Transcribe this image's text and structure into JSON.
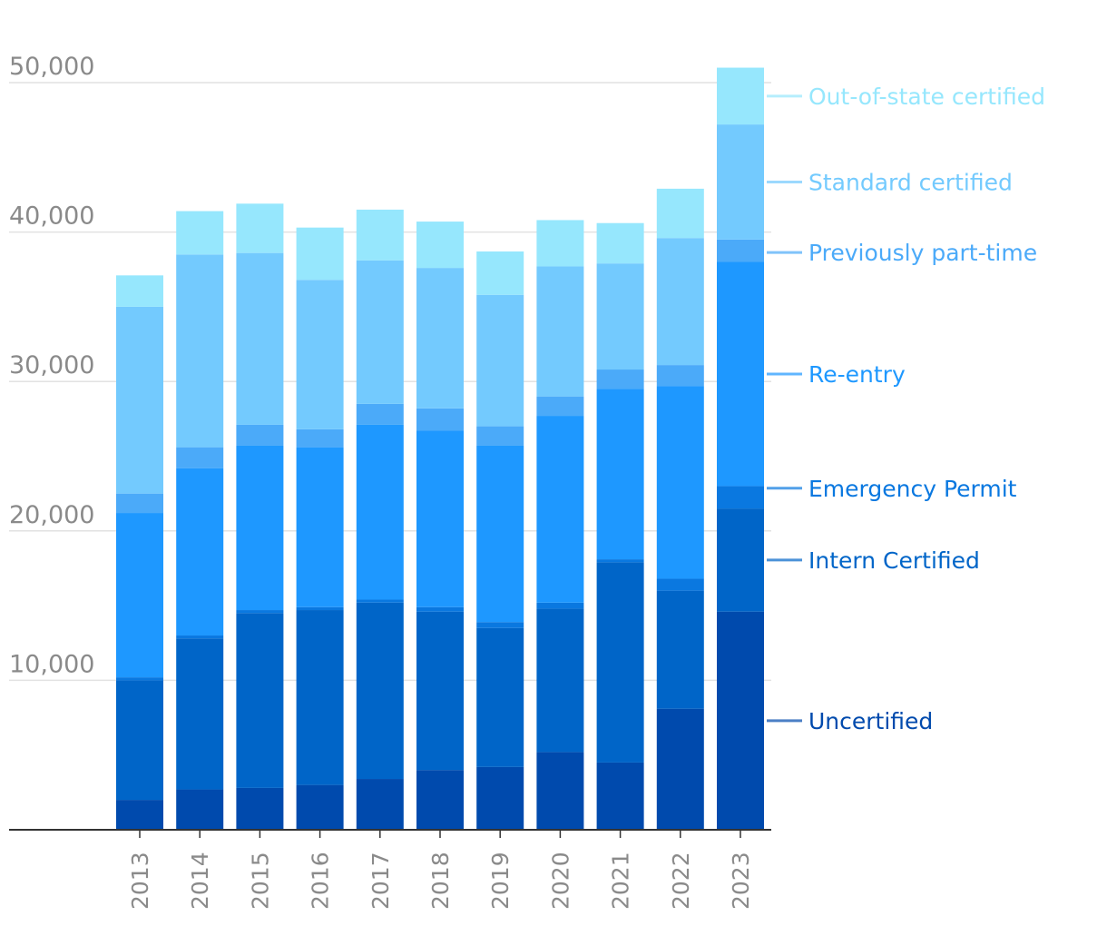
{
  "chart_data": {
    "type": "bar",
    "stacked": true,
    "title": "",
    "xlabel": "",
    "ylabel": "",
    "ylim": [
      0,
      50000
    ],
    "yticks": [
      10000,
      20000,
      30000,
      40000,
      50000
    ],
    "ytick_labels": [
      "10,000",
      "20,000",
      "30,000",
      "40,000",
      "50,000"
    ],
    "grid": "horizontal",
    "legend": "right, labels aligned to the 2023 bar segments",
    "categories": [
      "2013",
      "2014",
      "2015",
      "2016",
      "2017",
      "2018",
      "2019",
      "2020",
      "2021",
      "2022",
      "2023"
    ],
    "series": [
      {
        "name": "Uncertified",
        "color": "#004aad",
        "values": [
          2000,
          2700,
          2800,
          3000,
          3400,
          4000,
          4200,
          5200,
          4500,
          8100,
          14600
        ]
      },
      {
        "name": "Intern Certified",
        "color": "#0065c8",
        "values": [
          8000,
          10100,
          11700,
          11700,
          11800,
          10600,
          9300,
          9600,
          13400,
          7900,
          6900
        ]
      },
      {
        "name": "Emergency Permit",
        "color": "#0a78e0",
        "values": [
          200,
          200,
          200,
          200,
          200,
          300,
          400,
          400,
          200,
          800,
          1500
        ]
      },
      {
        "name": "Re-entry",
        "color": "#1e98ff",
        "values": [
          11000,
          11200,
          11000,
          10700,
          11700,
          11800,
          11800,
          12500,
          11400,
          12900,
          15000
        ]
      },
      {
        "name": "Previously part-time",
        "color": "#4baaf9",
        "values": [
          1300,
          1400,
          1400,
          1200,
          1400,
          1500,
          1300,
          1300,
          1300,
          1400,
          1500
        ]
      },
      {
        "name": "Standard certified",
        "color": "#73cafe",
        "values": [
          12500,
          12900,
          11500,
          10000,
          9600,
          9400,
          8800,
          8700,
          7100,
          8500,
          7700
        ]
      },
      {
        "name": "Out-of-state certified",
        "color": "#96e7fd",
        "values": [
          2100,
          2900,
          3300,
          3500,
          3400,
          3100,
          2900,
          3100,
          2700,
          3300,
          3800
        ]
      }
    ]
  }
}
